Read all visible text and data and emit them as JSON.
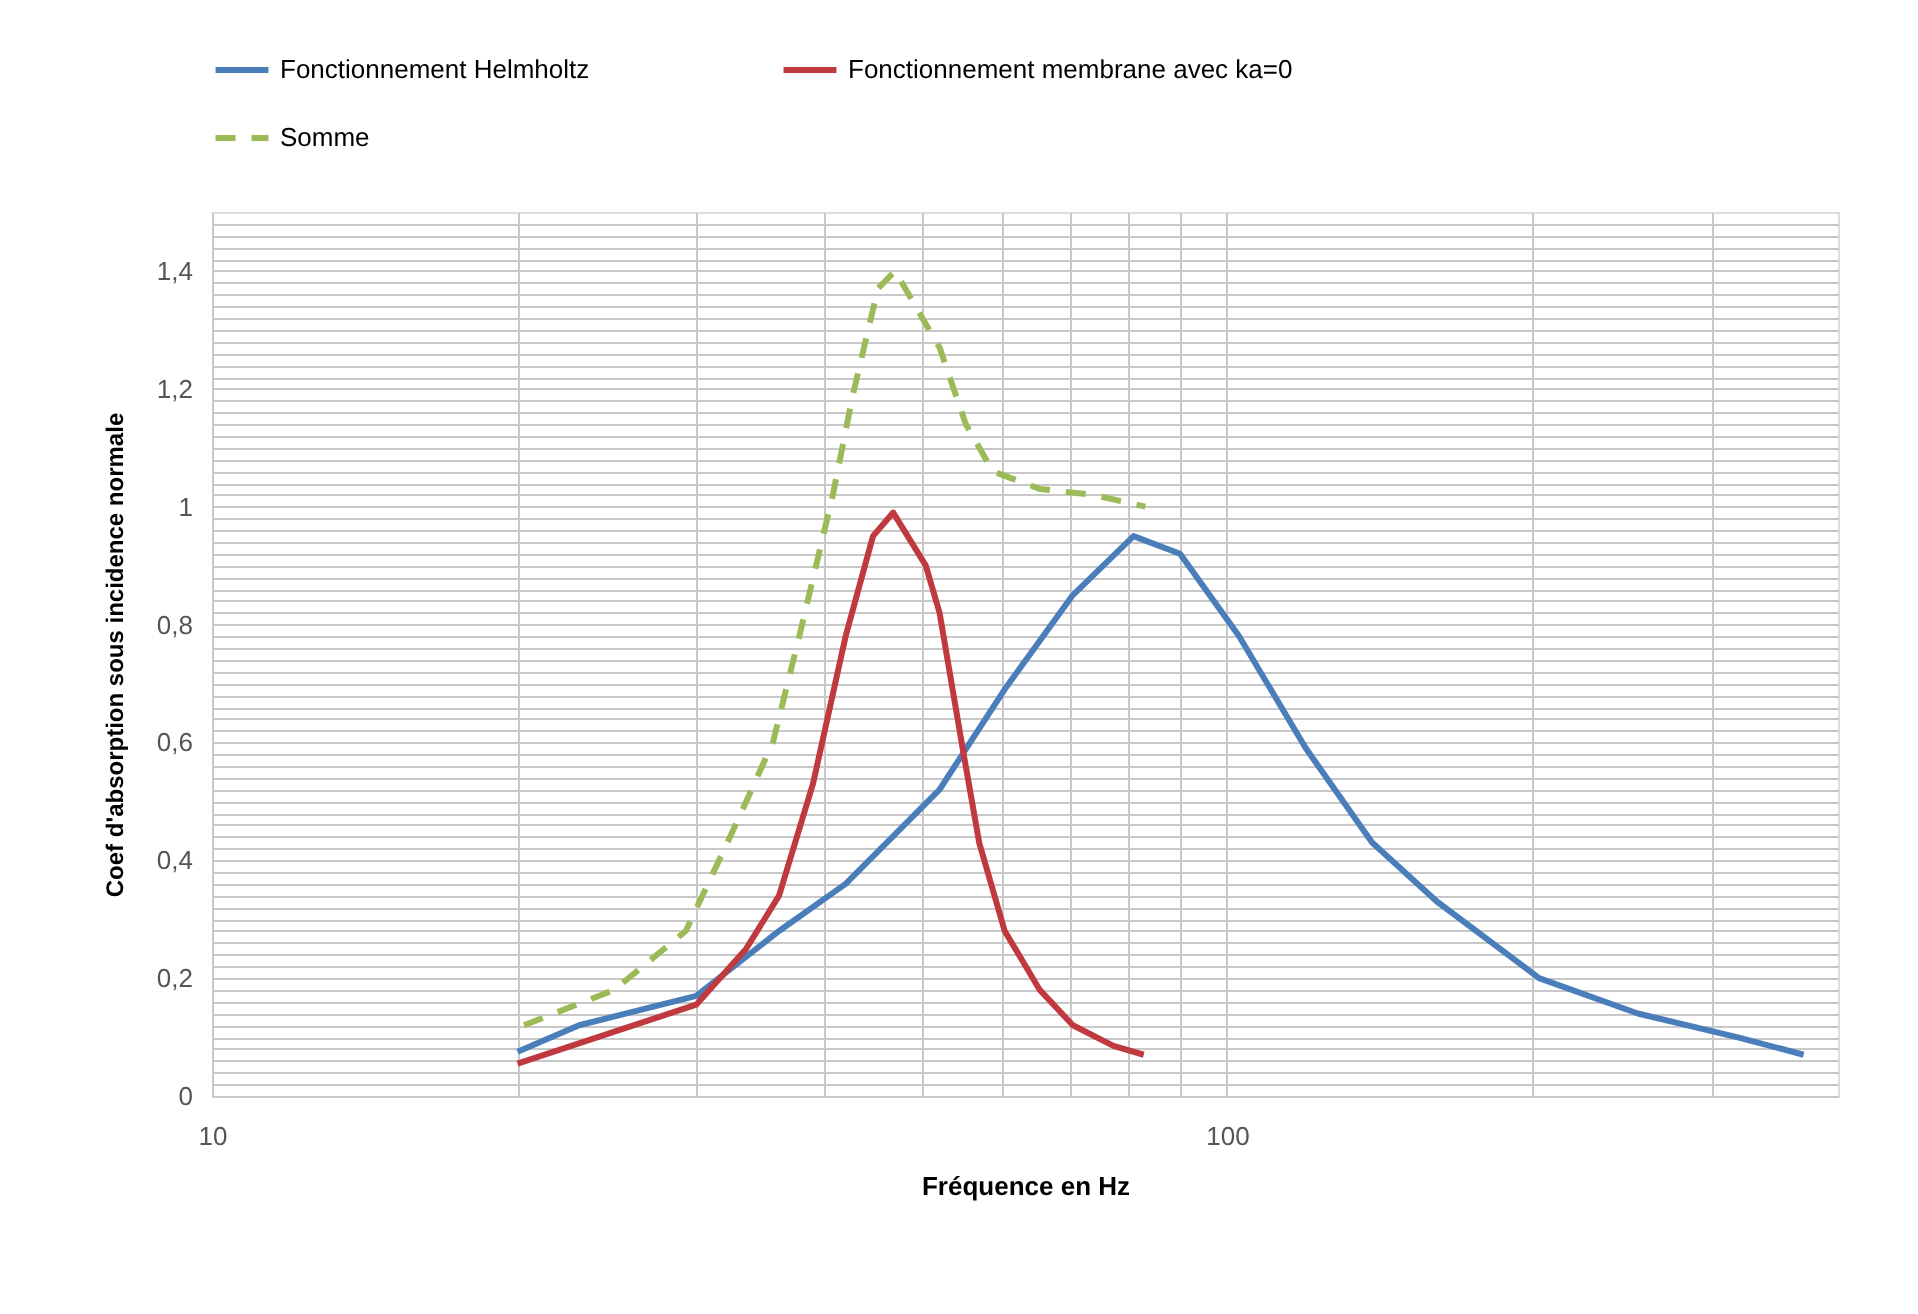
{
  "chart_data": {
    "type": "line",
    "xlabel": "Fréquence en Hz",
    "ylabel": "Coef d'absorption sous incidence normale",
    "log": "x",
    "grid": true,
    "legend": "top",
    "xlim": [
      10,
      400
    ],
    "ylim": [
      0,
      1.5
    ],
    "xticks": [
      10,
      {
        "value": 20,
        "label": null
      },
      {
        "value": 30,
        "label": null
      },
      {
        "value": 40,
        "label": null
      },
      {
        "value": 50,
        "label": null
      },
      {
        "value": 60,
        "label": null
      },
      {
        "value": 70,
        "label": null
      },
      {
        "value": 80,
        "label": null
      },
      {
        "value": 90,
        "label": null
      },
      100,
      {
        "value": 200,
        "label": null
      },
      {
        "value": 300,
        "label": null
      }
    ],
    "yticks": [
      0,
      {
        "value": 0.02,
        "label": null
      },
      {
        "value": 0.04,
        "label": null
      },
      {
        "value": 0.06,
        "label": null
      },
      {
        "value": 0.08,
        "label": null
      },
      {
        "value": 0.1,
        "label": null
      },
      {
        "value": 0.12,
        "label": null
      },
      {
        "value": 0.14,
        "label": null
      },
      {
        "value": 0.16,
        "label": null
      },
      {
        "value": 0.18,
        "label": null
      },
      {
        "value": 0.2,
        "label": "0,2"
      },
      {
        "value": 0.22,
        "label": null
      },
      {
        "value": 0.24,
        "label": null
      },
      {
        "value": 0.26,
        "label": null
      },
      {
        "value": 0.28,
        "label": null
      },
      {
        "value": 0.3,
        "label": null
      },
      {
        "value": 0.32,
        "label": null
      },
      {
        "value": 0.34,
        "label": null
      },
      {
        "value": 0.36,
        "label": null
      },
      {
        "value": 0.38,
        "label": null
      },
      {
        "value": 0.4,
        "label": "0,4"
      },
      {
        "value": 0.42,
        "label": null
      },
      {
        "value": 0.44,
        "label": null
      },
      {
        "value": 0.46,
        "label": null
      },
      {
        "value": 0.48,
        "label": null
      },
      {
        "value": 0.5,
        "label": null
      },
      {
        "value": 0.52,
        "label": null
      },
      {
        "value": 0.54,
        "label": null
      },
      {
        "value": 0.56,
        "label": null
      },
      {
        "value": 0.58,
        "label": null
      },
      {
        "value": 0.6,
        "label": "0,6"
      },
      {
        "value": 0.62,
        "label": null
      },
      {
        "value": 0.64,
        "label": null
      },
      {
        "value": 0.66,
        "label": null
      },
      {
        "value": 0.68,
        "label": null
      },
      {
        "value": 0.7,
        "label": null
      },
      {
        "value": 0.72,
        "label": null
      },
      {
        "value": 0.74,
        "label": null
      },
      {
        "value": 0.76,
        "label": null
      },
      {
        "value": 0.78,
        "label": null
      },
      {
        "value": 0.8,
        "label": "0,8"
      },
      {
        "value": 0.82,
        "label": null
      },
      {
        "value": 0.84,
        "label": null
      },
      {
        "value": 0.86,
        "label": null
      },
      {
        "value": 0.88,
        "label": null
      },
      {
        "value": 0.9,
        "label": null
      },
      {
        "value": 0.92,
        "label": null
      },
      {
        "value": 0.94,
        "label": null
      },
      {
        "value": 0.96,
        "label": null
      },
      {
        "value": 0.98,
        "label": null
      },
      1,
      {
        "value": 1.02,
        "label": null
      },
      {
        "value": 1.04,
        "label": null
      },
      {
        "value": 1.06,
        "label": null
      },
      {
        "value": 1.08,
        "label": null
      },
      {
        "value": 1.1,
        "label": null
      },
      {
        "value": 1.12,
        "label": null
      },
      {
        "value": 1.14,
        "label": null
      },
      {
        "value": 1.16,
        "label": null
      },
      {
        "value": 1.18,
        "label": null
      },
      {
        "value": 1.2,
        "label": "1,2"
      },
      {
        "value": 1.22,
        "label": null
      },
      {
        "value": 1.24,
        "label": null
      },
      {
        "value": 1.26,
        "label": null
      },
      {
        "value": 1.28,
        "label": null
      },
      {
        "value": 1.3,
        "label": null
      },
      {
        "value": 1.32,
        "label": null
      },
      {
        "value": 1.34,
        "label": null
      },
      {
        "value": 1.36,
        "label": null
      },
      {
        "value": 1.38,
        "label": null
      },
      {
        "value": 1.4,
        "label": "1,4"
      },
      {
        "value": 1.42,
        "label": null
      },
      {
        "value": 1.44,
        "label": null
      },
      {
        "value": 1.46,
        "label": null
      },
      {
        "value": 1.48,
        "label": null
      }
    ],
    "series": [
      {
        "name": "Fonctionnement Helmholtz",
        "color": "#4a7ebb",
        "line_style": "solid",
        "x": [
          20,
          23,
          30,
          36.2,
          42.1,
          52.1,
          60.4,
          70.5,
          80.9,
          89.9,
          102.8,
          119.6,
          139,
          161,
          203,
          254,
          318,
          370
        ],
        "values": [
          0.075,
          0.12,
          0.17,
          0.28,
          0.36,
          0.52,
          0.69,
          0.85,
          0.95,
          0.92,
          0.78,
          0.59,
          0.43,
          0.33,
          0.2,
          0.14,
          0.1,
          0.07
        ]
      },
      {
        "name": "Fonctionnement membrane avec ka=0",
        "color": "#c0393f",
        "line_style": "solid",
        "x": [
          20,
          30,
          33.6,
          36.2,
          39.1,
          42.1,
          44.8,
          46.9,
          50.5,
          52.1,
          54.9,
          57,
          60.4,
          65.4,
          70.5,
          77.3,
          82.8
        ],
        "values": [
          0.055,
          0.155,
          0.25,
          0.34,
          0.53,
          0.78,
          0.95,
          0.99,
          0.9,
          0.82,
          0.59,
          0.43,
          0.28,
          0.18,
          0.12,
          0.085,
          0.07
        ]
      },
      {
        "name": "Somme",
        "color": "#9bbb59",
        "line_style": "dashed",
        "x": [
          20.3,
          24.9,
          29.3,
          32.6,
          35.7,
          37.9,
          40.9,
          42.8,
          45.3,
          47.1,
          50.5,
          52.1,
          55.3,
          58.8,
          65.4,
          73.8,
          83.1
        ],
        "values": [
          0.12,
          0.18,
          0.28,
          0.45,
          0.6,
          0.78,
          1.02,
          1.19,
          1.37,
          1.4,
          1.31,
          1.27,
          1.14,
          1.06,
          1.03,
          1.02,
          1.0
        ]
      }
    ]
  }
}
